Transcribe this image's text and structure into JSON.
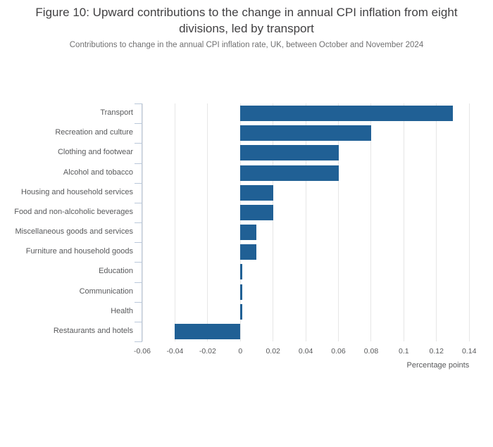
{
  "chart_data": {
    "type": "bar",
    "orientation": "horizontal",
    "title": "Figure 10: Upward contributions to the change in annual CPI inflation from eight divisions, led by transport",
    "subtitle": "Contributions to change in the annual CPI inflation rate, UK, between October and November 2024",
    "categories": [
      "Transport",
      "Recreation and culture",
      "Clothing and footwear",
      "Alcohol and tobacco",
      "Housing and household services",
      "Food and non-alcoholic beverages",
      "Miscellaneous goods and services",
      "Furniture and household goods",
      "Education",
      "Communication",
      "Health",
      "Restaurants and hotels"
    ],
    "values": [
      0.13,
      0.08,
      0.06,
      0.06,
      0.02,
      0.02,
      0.01,
      0.01,
      0.001,
      0.001,
      0.001,
      -0.04
    ],
    "xlabel": "Percentage points",
    "xtick_labels": [
      "-0.06",
      "-0.04",
      "-0.02",
      "0",
      "0.02",
      "0.04",
      "0.06",
      "0.08",
      "0.1",
      "0.12",
      "0.14"
    ],
    "xlim": [
      -0.06,
      0.1425
    ],
    "grid": true,
    "legend": "none",
    "colors": {
      "bar": "#206095",
      "axis_line": "#b9c7d9",
      "gridline": "#e6e6e6",
      "title_text": "#414042",
      "subtitle_text": "#707071",
      "axis_text": "#58595b"
    }
  }
}
